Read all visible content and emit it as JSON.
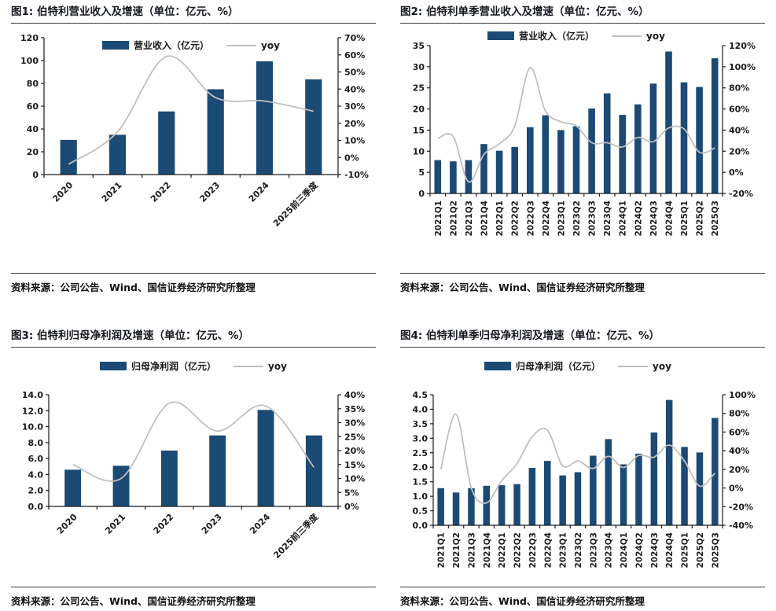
{
  "colors": {
    "bar": "#1B4A74",
    "line": "#C0C0C0",
    "axis": "#1a1a1a"
  },
  "chart_data": [
    {
      "type": "bar",
      "title": "图1: 伯特利营业收入及增速（单位：亿元、%）",
      "source": "资料来源：公司公告、Wind、国信证券经济研究所整理",
      "legend": [
        "营业收入（亿元）",
        "yoy"
      ],
      "categories": [
        "2020",
        "2021",
        "2022",
        "2023",
        "2024",
        "2025前三季度"
      ],
      "series": [
        {
          "name": "营业收入（亿元）",
          "type": "bar",
          "axis": "left",
          "values": [
            30.4,
            34.9,
            55.4,
            74.8,
            99.4,
            83.5
          ]
        },
        {
          "name": "yoy",
          "type": "line",
          "axis": "right",
          "values": [
            -4,
            15,
            59,
            35,
            33,
            27
          ]
        }
      ],
      "left_axis": {
        "min": 0,
        "max": 120,
        "ticks": [
          "0",
          "20",
          "40",
          "60",
          "80",
          "100",
          "120"
        ]
      },
      "right_axis": {
        "min": -10,
        "max": 70,
        "ticks": [
          "-10%",
          "0%",
          "10%",
          "20%",
          "30%",
          "40%",
          "50%",
          "60%",
          "70%"
        ]
      },
      "legend_position": "top-center",
      "grid": false
    },
    {
      "type": "bar",
      "title": "图2: 伯特利单季营业收入及增速（单位：亿元、%）",
      "source": "资料来源：公司公告、Wind、国信证券经济研究所整理",
      "legend": [
        "营业收入（亿元）",
        "yoy"
      ],
      "categories": [
        "2021Q1",
        "2021Q2",
        "2021Q3",
        "2021Q4",
        "2022Q1",
        "2022Q2",
        "2022Q3",
        "2022Q4",
        "2023Q1",
        "2023Q2",
        "2023Q3",
        "2023Q4",
        "2024Q1",
        "2024Q2",
        "2024Q3",
        "2024Q4",
        "2025Q1",
        "2025Q2",
        "2025Q3"
      ],
      "series": [
        {
          "name": "营业收入（亿元）",
          "type": "bar",
          "axis": "left",
          "values": [
            7.9,
            7.6,
            7.9,
            11.7,
            10.1,
            11.0,
            15.7,
            18.5,
            15.0,
            15.9,
            20.1,
            23.7,
            18.6,
            21.1,
            26.0,
            33.6,
            26.3,
            25.2,
            32.0
          ]
        },
        {
          "name": "yoy",
          "type": "line",
          "axis": "right",
          "values": [
            32,
            34,
            -9,
            17,
            27,
            44,
            99,
            58,
            48,
            44,
            28,
            28,
            24,
            33,
            29,
            42,
            41,
            19,
            23
          ]
        }
      ],
      "left_axis": {
        "min": 0,
        "max": 35,
        "ticks": [
          "0",
          "5",
          "10",
          "15",
          "20",
          "25",
          "30",
          "35"
        ]
      },
      "right_axis": {
        "min": -20,
        "max": 120,
        "ticks": [
          "-20%",
          "0%",
          "20%",
          "40%",
          "60%",
          "80%",
          "100%",
          "120%"
        ]
      },
      "legend_position": "top-center",
      "grid": false
    },
    {
      "type": "bar",
      "title": "图3: 伯特利归母净利润及增速（单位：亿元、%）",
      "source": "资料来源：公司公告、Wind、国信证券经济研究所整理",
      "legend": [
        "归母净利润（亿元）",
        "yoy"
      ],
      "categories": [
        "2020",
        "2021",
        "2022",
        "2023",
        "2024",
        "2025前三季度"
      ],
      "series": [
        {
          "name": "归母净利润（亿元）",
          "type": "bar",
          "axis": "left",
          "values": [
            4.6,
            5.1,
            7.0,
            8.9,
            12.1,
            8.9
          ]
        },
        {
          "name": "yoy",
          "type": "line",
          "axis": "right",
          "values": [
            15,
            10,
            37,
            27,
            36,
            14
          ]
        }
      ],
      "left_axis": {
        "min": 0,
        "max": 14,
        "ticks": [
          "0.0",
          "2.0",
          "4.0",
          "6.0",
          "8.0",
          "10.0",
          "12.0",
          "14.0"
        ]
      },
      "right_axis": {
        "min": 0,
        "max": 40,
        "ticks": [
          "0%",
          "5%",
          "10%",
          "15%",
          "20%",
          "25%",
          "30%",
          "35%",
          "40%"
        ]
      },
      "legend_position": "top-center",
      "grid": false
    },
    {
      "type": "bar",
      "title": "图4: 伯特利单季归母净利润及增速（单位：亿元、%）",
      "source": "资料来源：公司公告、Wind、国信证券经济研究所整理",
      "legend": [
        "归母净利润（亿元）",
        "yoy"
      ],
      "categories": [
        "2021Q1",
        "2021Q2",
        "2021Q3",
        "2021Q4",
        "2022Q1",
        "2022Q2",
        "2022Q3",
        "2022Q4",
        "2023Q1",
        "2023Q2",
        "2023Q3",
        "2023Q4",
        "2024Q1",
        "2024Q2",
        "2024Q3",
        "2024Q4",
        "2025Q1",
        "2025Q2",
        "2025Q3"
      ],
      "series": [
        {
          "name": "归母净利润（亿元）",
          "type": "bar",
          "axis": "left",
          "values": [
            1.28,
            1.13,
            1.28,
            1.36,
            1.38,
            1.42,
            1.98,
            2.22,
            1.72,
            1.83,
            2.4,
            2.97,
            2.1,
            2.47,
            3.2,
            4.32,
            2.7,
            2.51,
            3.7
          ]
        },
        {
          "name": "yoy",
          "type": "line",
          "axis": "right",
          "values": [
            20,
            79,
            0,
            -16,
            8,
            26,
            55,
            62,
            24,
            29,
            21,
            34,
            22,
            35,
            33,
            46,
            29,
            2,
            16
          ]
        }
      ],
      "left_axis": {
        "min": 0,
        "max": 4.5,
        "ticks": [
          "0.0",
          "0.5",
          "1.0",
          "1.5",
          "2.0",
          "2.5",
          "3.0",
          "3.5",
          "4.0",
          "4.5"
        ]
      },
      "right_axis": {
        "min": -40,
        "max": 100,
        "ticks": [
          "-40%",
          "-20%",
          "0%",
          "20%",
          "40%",
          "60%",
          "80%",
          "100%"
        ]
      },
      "legend_position": "top-center",
      "grid": false
    }
  ]
}
